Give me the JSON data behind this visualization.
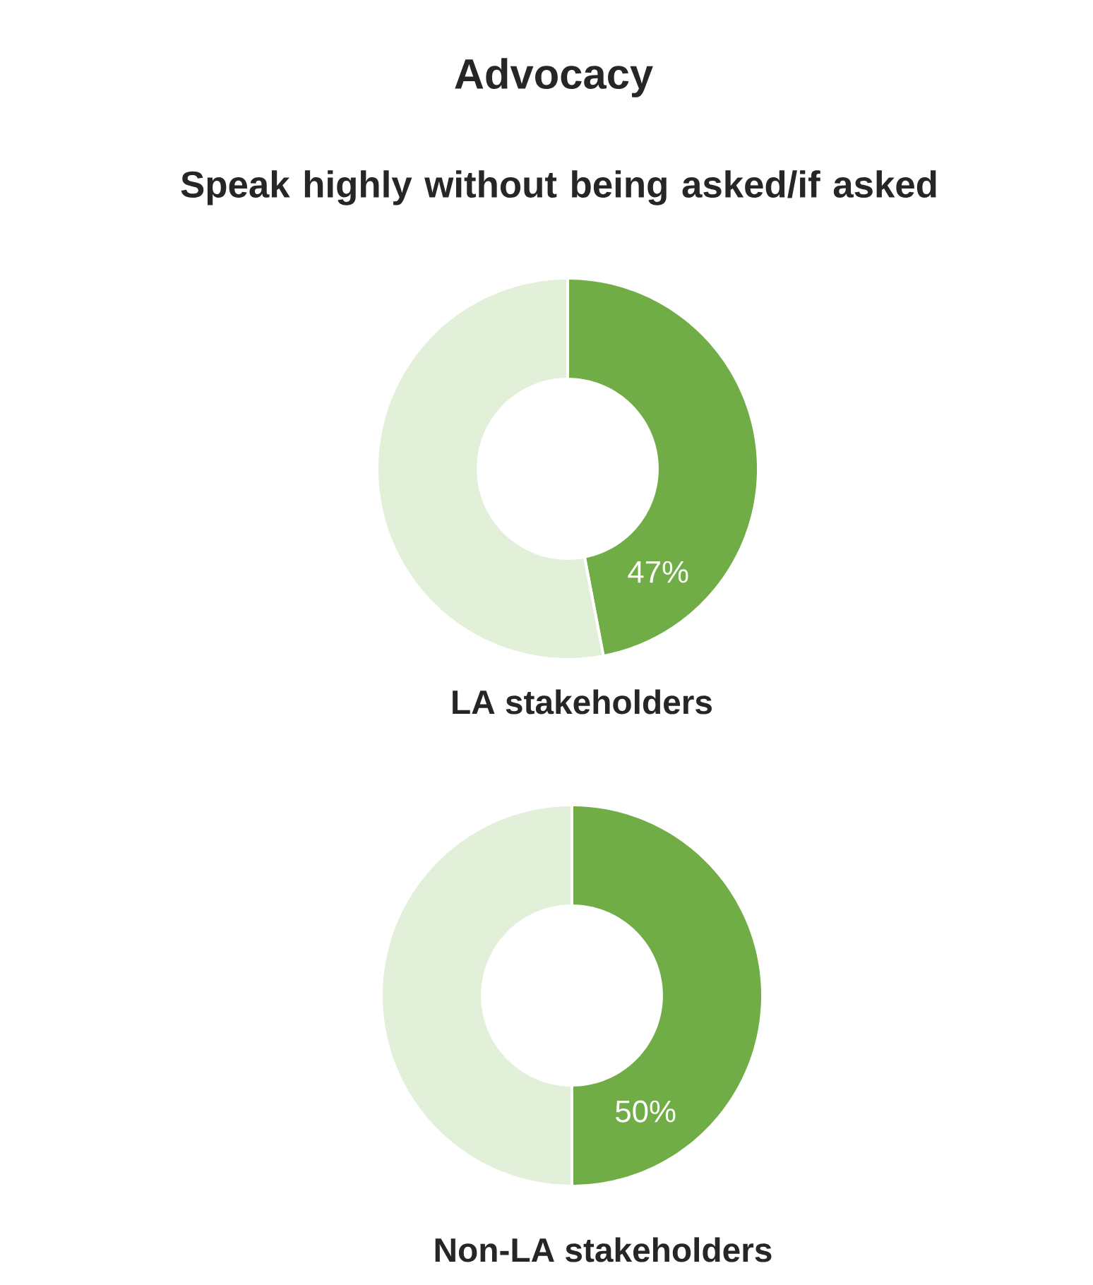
{
  "chart_data": [
    {
      "type": "donut",
      "title": "Advocacy",
      "subtitle": "Speak highly without being asked/if asked",
      "xlabel": "LA stakeholders",
      "categories": [
        null,
        null
      ],
      "values": [
        47,
        53
      ],
      "colors": [
        "#70ad47",
        "#e2efd9"
      ],
      "value_labels": [
        "47%",
        null
      ]
    },
    {
      "type": "donut",
      "xlabel": "Non-LA stakeholders",
      "categories": [
        null,
        null
      ],
      "values": [
        50,
        50
      ],
      "colors": [
        "#70ad47",
        "#e2efd9"
      ],
      "value_labels": [
        "50%",
        null
      ]
    }
  ]
}
